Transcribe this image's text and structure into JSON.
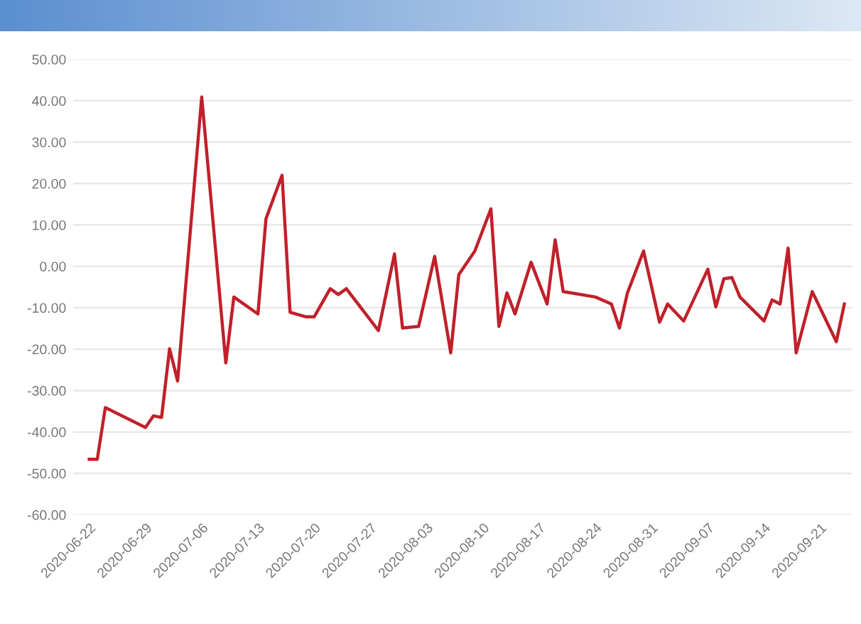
{
  "chart_data": {
    "type": "line",
    "x": [
      "2020-06-22",
      "2020-06-23",
      "2020-06-24",
      "2020-06-29",
      "2020-06-30",
      "2020-07-01",
      "2020-07-02",
      "2020-07-03",
      "2020-07-06",
      "2020-07-09",
      "2020-07-10",
      "2020-07-13",
      "2020-07-14",
      "2020-07-16",
      "2020-07-17",
      "2020-07-19",
      "2020-07-20",
      "2020-07-22",
      "2020-07-23",
      "2020-07-24",
      "2020-07-28",
      "2020-07-30",
      "2020-07-31",
      "2020-08-02",
      "2020-08-04",
      "2020-08-06",
      "2020-08-07",
      "2020-08-09",
      "2020-08-11",
      "2020-08-12",
      "2020-08-13",
      "2020-08-14",
      "2020-08-16",
      "2020-08-18",
      "2020-08-19",
      "2020-08-20",
      "2020-08-24",
      "2020-08-26",
      "2020-08-27",
      "2020-08-28",
      "2020-08-30",
      "2020-09-01",
      "2020-09-02",
      "2020-09-04",
      "2020-09-07",
      "2020-09-08",
      "2020-09-09",
      "2020-09-10",
      "2020-09-11",
      "2020-09-14",
      "2020-09-15",
      "2020-09-16",
      "2020-09-17",
      "2020-09-18",
      "2020-09-20",
      "2020-09-23",
      "2020-09-24"
    ],
    "series": [
      {
        "color": "#c0202a",
        "values": [
          -46.6,
          -46.6,
          -34.1,
          -38.9,
          -36.1,
          -36.5,
          -19.9,
          -27.7,
          40.9,
          -23.3,
          -7.4,
          -11.5,
          11.5,
          22.0,
          -11.1,
          -12.2,
          -12.2,
          -5.4,
          -6.8,
          -5.4,
          -15.5,
          3.0,
          -14.9,
          -14.5,
          2.4,
          -20.9,
          -2.0,
          3.7,
          13.9,
          -14.5,
          -6.4,
          -11.5,
          1.0,
          -9.1,
          6.4,
          -6.1,
          -7.4,
          -9.1,
          -14.9,
          -6.4,
          3.7,
          -13.5,
          -9.1,
          -13.2,
          -0.7,
          -9.8,
          -3.0,
          -2.7,
          -7.4,
          -13.2,
          -8.1,
          -9.1,
          4.4,
          -20.9,
          -6.1,
          -18.2,
          -9.1
        ]
      }
    ],
    "xlim": [
      "2020-06-20",
      "2020-09-25"
    ],
    "xticks": [
      {
        "value": "2020-06-22",
        "label": "2020-06-22"
      },
      {
        "value": "2020-06-29",
        "label": "2020-06-29"
      },
      {
        "value": "2020-07-06",
        "label": "2020-07-06"
      },
      {
        "value": "2020-07-13",
        "label": "2020-07-13"
      },
      {
        "value": "2020-07-20",
        "label": "2020-07-20"
      },
      {
        "value": "2020-07-27",
        "label": "2020-07-27"
      },
      {
        "value": "2020-08-03",
        "label": "2020-08-03"
      },
      {
        "value": "2020-08-10",
        "label": "2020-08-10"
      },
      {
        "value": "2020-08-17",
        "label": "2020-08-17"
      },
      {
        "value": "2020-08-24",
        "label": "2020-08-24"
      },
      {
        "value": "2020-08-31",
        "label": "2020-08-31"
      },
      {
        "value": "2020-09-07",
        "label": "2020-09-07"
      },
      {
        "value": "2020-09-14",
        "label": "2020-09-14"
      },
      {
        "value": "2020-09-21",
        "label": "2020-09-21"
      }
    ],
    "ylim": [
      -60,
      50
    ],
    "yticks": [
      {
        "value": -60,
        "label": "-60.00"
      },
      {
        "value": -50,
        "label": "-50.00"
      },
      {
        "value": -40,
        "label": "-40.00"
      },
      {
        "value": -30,
        "label": "-30.00"
      },
      {
        "value": -20,
        "label": "-20.00"
      },
      {
        "value": -10,
        "label": "-10.00"
      },
      {
        "value": 0,
        "label": "0.00"
      },
      {
        "value": 10,
        "label": "10.00"
      },
      {
        "value": 20,
        "label": "20.00"
      },
      {
        "value": 30,
        "label": "30.00"
      },
      {
        "value": 40,
        "label": "40.00"
      },
      {
        "value": 50,
        "label": "50.00"
      }
    ],
    "grid": "y",
    "marker": "none",
    "line_style": "solid"
  }
}
